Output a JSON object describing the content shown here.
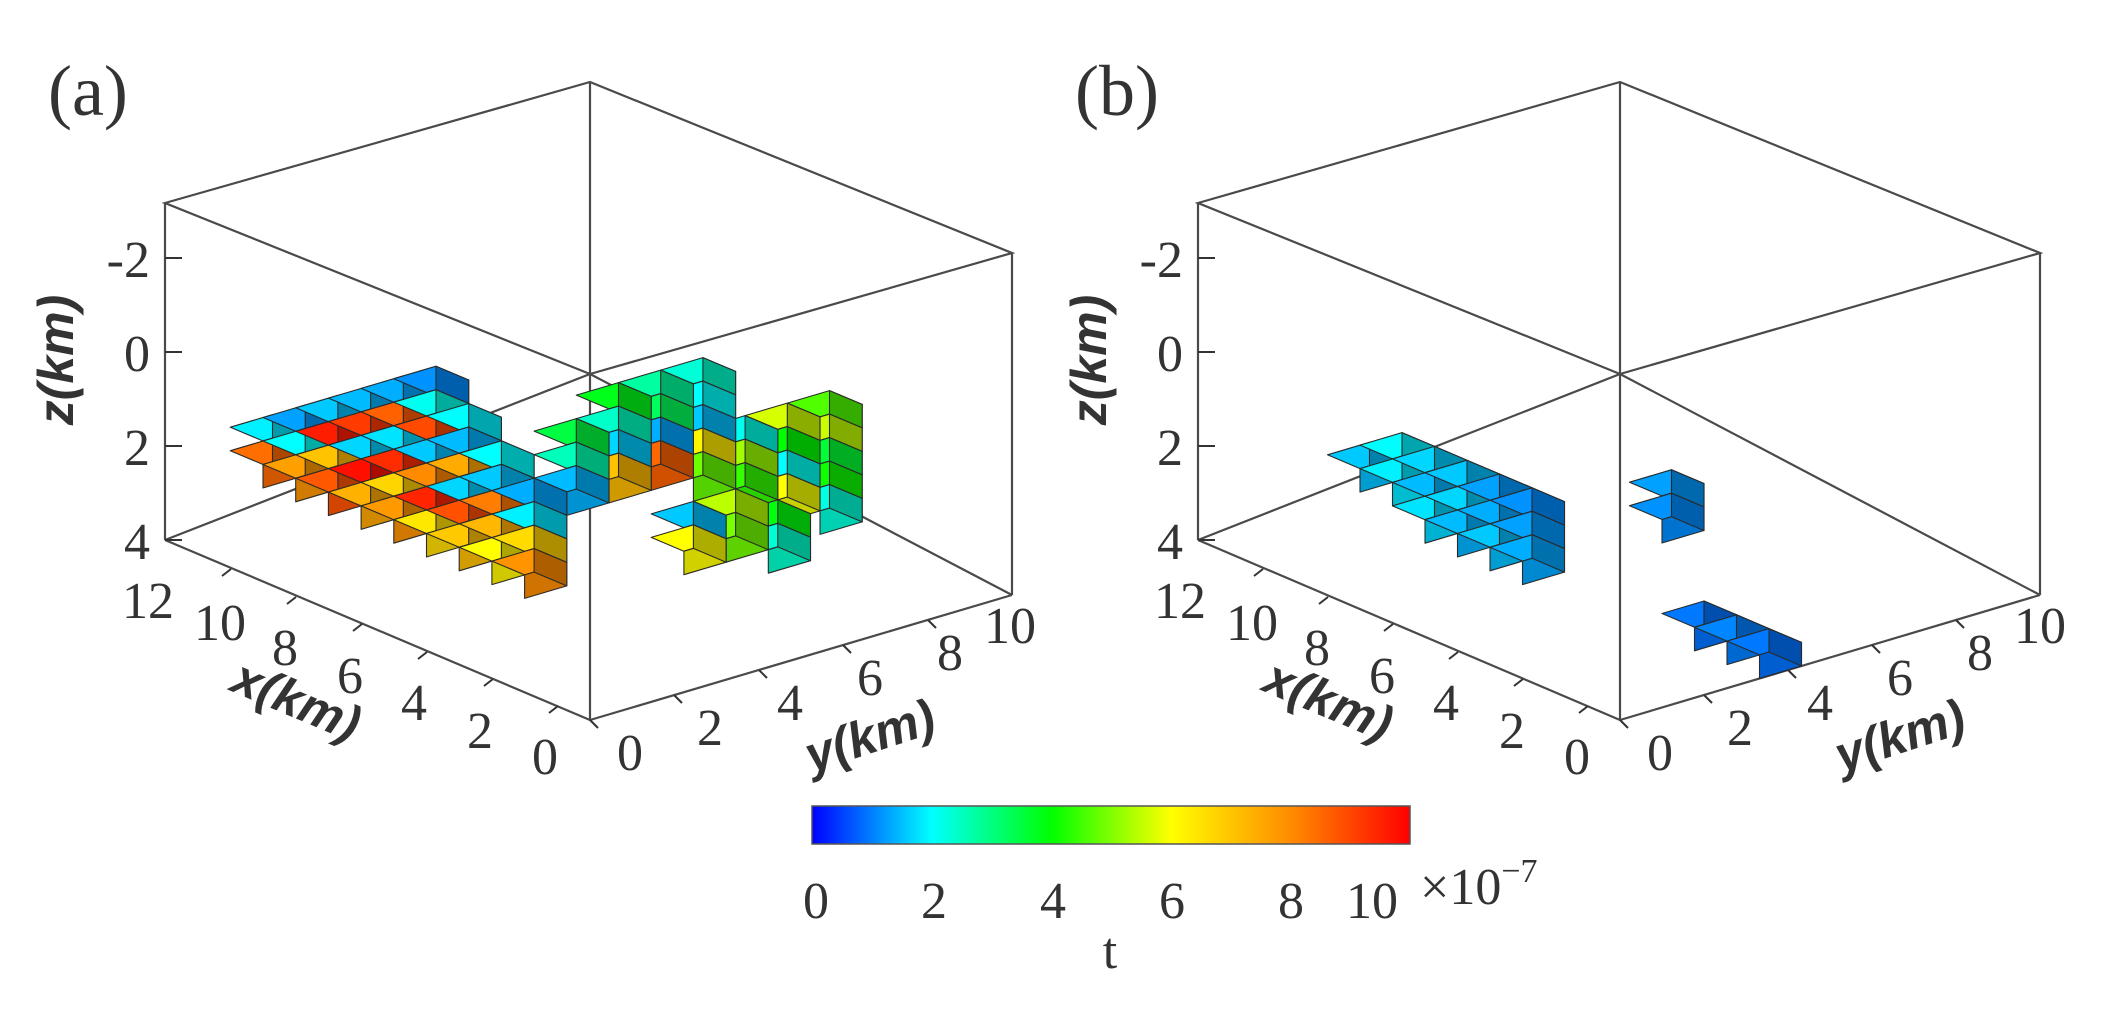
{
  "chart_data": [
    {
      "type": "scatter",
      "subtype": "3d-voxel",
      "panel_label": "(a)",
      "xlabel": "x(km)",
      "ylabel": "y(km)",
      "zlabel": "z(km)",
      "x_ticks": [
        "12",
        "10",
        "8",
        "6",
        "4",
        "2",
        "0"
      ],
      "y_ticks": [
        "0",
        "2",
        "4",
        "6",
        "8",
        "10"
      ],
      "z_ticks": [
        "-2",
        "0",
        "2",
        "4"
      ],
      "xlim": [
        0,
        13
      ],
      "ylim": [
        0,
        10
      ],
      "zlim": [
        -3,
        4
      ],
      "z_reversed": true,
      "voxels": [
        {
          "x": 10,
          "y": 0,
          "z": 1.5,
          "t": 1.8
        },
        {
          "x": 10,
          "y": 0,
          "z": 2.0,
          "t": 8.5
        },
        {
          "x": 9,
          "y": 0,
          "z": 1.0,
          "t": 1.2
        },
        {
          "x": 9,
          "y": 0,
          "z": 1.5,
          "t": 2.1
        },
        {
          "x": 9,
          "y": 0,
          "z": 2.0,
          "t": 7.8
        },
        {
          "x": 8,
          "y": 0,
          "z": 0.5,
          "t": 1.5
        },
        {
          "x": 8,
          "y": 0,
          "z": 1.0,
          "t": 9.6
        },
        {
          "x": 8,
          "y": 0,
          "z": 1.5,
          "t": 7.2
        },
        {
          "x": 8,
          "y": 0,
          "z": 2.0,
          "t": 8.8
        },
        {
          "x": 7,
          "y": 0,
          "z": 0.0,
          "t": 1.4
        },
        {
          "x": 7,
          "y": 0,
          "z": 0.5,
          "t": 9.2
        },
        {
          "x": 7,
          "y": 0,
          "z": 1.0,
          "t": 1.6
        },
        {
          "x": 7,
          "y": 0,
          "z": 1.5,
          "t": 9.8
        },
        {
          "x": 7,
          "y": 0,
          "z": 2.0,
          "t": 7.5
        },
        {
          "x": 6,
          "y": 0,
          "z": -0.5,
          "t": 1.3
        },
        {
          "x": 6,
          "y": 0,
          "z": 0.0,
          "t": 8.7
        },
        {
          "x": 6,
          "y": 0,
          "z": 0.5,
          "t": 1.7
        },
        {
          "x": 6,
          "y": 0,
          "z": 1.0,
          "t": 9.4
        },
        {
          "x": 6,
          "y": 0,
          "z": 1.5,
          "t": 6.9
        },
        {
          "x": 6,
          "y": 0,
          "z": 2.0,
          "t": 7.9
        },
        {
          "x": 5,
          "y": 0,
          "z": -1.0,
          "t": 1.1
        },
        {
          "x": 5,
          "y": 0,
          "z": -0.5,
          "t": 2.2
        },
        {
          "x": 5,
          "y": 0,
          "z": 0.0,
          "t": 9.0
        },
        {
          "x": 5,
          "y": 0,
          "z": 0.5,
          "t": 1.5
        },
        {
          "x": 5,
          "y": 0,
          "z": 1.0,
          "t": 8.1
        },
        {
          "x": 5,
          "y": 0,
          "z": 1.5,
          "t": 9.5
        },
        {
          "x": 5,
          "y": 0,
          "z": 2.0,
          "t": 6.6
        },
        {
          "x": 4,
          "y": 0,
          "z": -0.5,
          "t": 1.9
        },
        {
          "x": 4,
          "y": 0,
          "z": 0.0,
          "t": 1.4
        },
        {
          "x": 4,
          "y": 0,
          "z": 0.5,
          "t": 7.6
        },
        {
          "x": 4,
          "y": 0,
          "z": 1.0,
          "t": 1.6
        },
        {
          "x": 4,
          "y": 0,
          "z": 1.5,
          "t": 8.9
        },
        {
          "x": 4,
          "y": 0,
          "z": 2.0,
          "t": 7.1
        },
        {
          "x": 3,
          "y": 0,
          "z": 0.0,
          "t": 2.0
        },
        {
          "x": 3,
          "y": 0,
          "z": 0.5,
          "t": 1.5
        },
        {
          "x": 3,
          "y": 0,
          "z": 1.0,
          "t": 8.3
        },
        {
          "x": 3,
          "y": 0,
          "z": 1.5,
          "t": 7.4
        },
        {
          "x": 3,
          "y": 0,
          "z": 2.0,
          "t": 6.2
        },
        {
          "x": 2,
          "y": 0,
          "z": 0.5,
          "t": 1.3
        },
        {
          "x": 2,
          "y": 0,
          "z": 1.0,
          "t": 1.8
        },
        {
          "x": 2,
          "y": 0,
          "z": 1.5,
          "t": 6.8
        },
        {
          "x": 2,
          "y": 0,
          "z": 2.0,
          "t": 8.0
        },
        {
          "x": 2,
          "y": 1,
          "z": -0.5,
          "t": 3.5
        },
        {
          "x": 2,
          "y": 1,
          "z": 0.0,
          "t": 2.6
        },
        {
          "x": 2,
          "y": 1,
          "z": 0.5,
          "t": 1.4
        },
        {
          "x": 2,
          "y": 2,
          "z": -1.0,
          "t": 3.8
        },
        {
          "x": 2,
          "y": 2,
          "z": -0.5,
          "t": 2.5
        },
        {
          "x": 2,
          "y": 2,
          "z": 0.0,
          "t": 1.6
        },
        {
          "x": 2,
          "y": 2,
          "z": 0.5,
          "t": 7.2
        },
        {
          "x": 2,
          "y": 3,
          "z": -1.0,
          "t": 2.8
        },
        {
          "x": 2,
          "y": 3,
          "z": -0.5,
          "t": 3.3
        },
        {
          "x": 2,
          "y": 3,
          "z": 0.0,
          "t": 1.3
        },
        {
          "x": 2,
          "y": 3,
          "z": 0.5,
          "t": 8.6
        },
        {
          "x": 2,
          "y": 4,
          "z": -1.0,
          "t": 2.4
        },
        {
          "x": 2,
          "y": 4,
          "z": -0.5,
          "t": 2.0
        },
        {
          "x": 2,
          "y": 4,
          "z": 0.0,
          "t": 1.5
        },
        {
          "x": 2,
          "y": 4,
          "z": 0.5,
          "t": 6.4
        },
        {
          "x": 2,
          "y": 4,
          "z": 1.0,
          "t": 4.8
        },
        {
          "x": 2,
          "y": 5,
          "z": 0.5,
          "t": 2.2
        },
        {
          "x": 2,
          "y": 5,
          "z": 1.0,
          "t": 5.2
        },
        {
          "x": 2,
          "y": 5,
          "z": 1.5,
          "t": 4.4
        },
        {
          "x": 2,
          "y": 6,
          "z": 0.5,
          "t": 5.6
        },
        {
          "x": 2,
          "y": 6,
          "z": 1.0,
          "t": 4.0
        },
        {
          "x": 2,
          "y": 6,
          "z": 1.5,
          "t": 2.1
        },
        {
          "x": 2,
          "y": 6,
          "z": 2.0,
          "t": 5.9
        },
        {
          "x": 2,
          "y": 7,
          "z": 0.5,
          "t": 4.6
        },
        {
          "x": 2,
          "y": 7,
          "z": 1.0,
          "t": 5.5
        },
        {
          "x": 2,
          "y": 7,
          "z": 1.5,
          "t": 3.6
        },
        {
          "x": 2,
          "y": 7,
          "z": 2.0,
          "t": 4.1
        },
        {
          "x": 2,
          "y": 7,
          "z": 2.5,
          "t": 2.3
        },
        {
          "x": 1,
          "y": 3,
          "z": 1.5,
          "t": 1.5
        },
        {
          "x": 1,
          "y": 3,
          "z": 2.0,
          "t": 6.0
        },
        {
          "x": 1,
          "y": 4,
          "z": 1.5,
          "t": 5.4
        },
        {
          "x": 1,
          "y": 4,
          "z": 2.0,
          "t": 4.9
        },
        {
          "x": 1,
          "y": 5,
          "z": 2.0,
          "t": 3.9
        },
        {
          "x": 1,
          "y": 5,
          "z": 2.5,
          "t": 2.4
        }
      ]
    },
    {
      "type": "scatter",
      "subtype": "3d-voxel",
      "panel_label": "(b)",
      "xlabel": "x(km)",
      "ylabel": "y(km)",
      "zlabel": "z(km)",
      "x_ticks": [
        "12",
        "10",
        "8",
        "6",
        "4",
        "2",
        "0"
      ],
      "y_ticks": [
        "0",
        "2",
        "4",
        "6",
        "8",
        "10"
      ],
      "z_ticks": [
        "-2",
        "0",
        "2",
        "4"
      ],
      "xlim": [
        0,
        13
      ],
      "ylim": [
        0,
        10
      ],
      "zlim": [
        -3,
        4
      ],
      "z_reversed": true,
      "voxels": [
        {
          "x": 8,
          "y": 0,
          "z": 1.5,
          "t": 1.5
        },
        {
          "x": 7,
          "y": 0,
          "z": 1.0,
          "t": 1.9
        },
        {
          "x": 7,
          "y": 0,
          "z": 1.5,
          "t": 1.8
        },
        {
          "x": 6,
          "y": 0,
          "z": 1.0,
          "t": 1.6
        },
        {
          "x": 6,
          "y": 0,
          "z": 1.5,
          "t": 1.4
        },
        {
          "x": 6,
          "y": 0,
          "z": 2.0,
          "t": 1.7
        },
        {
          "x": 5,
          "y": 0,
          "z": 1.0,
          "t": 1.5
        },
        {
          "x": 5,
          "y": 0,
          "z": 1.5,
          "t": 1.6
        },
        {
          "x": 5,
          "y": 0,
          "z": 2.0,
          "t": 1.4
        },
        {
          "x": 4,
          "y": 0,
          "z": 1.0,
          "t": 1.2
        },
        {
          "x": 4,
          "y": 0,
          "z": 1.5,
          "t": 1.3
        },
        {
          "x": 4,
          "y": 0,
          "z": 2.0,
          "t": 1.5
        },
        {
          "x": 3,
          "y": 0,
          "z": 1.0,
          "t": 1.1
        },
        {
          "x": 3,
          "y": 0,
          "z": 1.5,
          "t": 1.2
        },
        {
          "x": 3,
          "y": 0,
          "z": 2.0,
          "t": 1.3
        },
        {
          "x": 0,
          "y": 1,
          "z": 0.0,
          "t": 1.2
        },
        {
          "x": 0,
          "y": 1,
          "z": 0.5,
          "t": 1.1
        },
        {
          "x": -1,
          "y": 1,
          "z": 2.5,
          "t": 0.9
        },
        {
          "x": -2,
          "y": 1,
          "z": 2.5,
          "t": 1.0
        },
        {
          "x": -3,
          "y": 1,
          "z": 2.5,
          "t": 0.9
        }
      ]
    }
  ],
  "colorbar": {
    "label": "t",
    "ticks": [
      "0",
      "2",
      "4",
      "6",
      "8",
      "10"
    ],
    "range": [
      0,
      10
    ],
    "multiplier": "×10",
    "exponent": "−7",
    "colors": [
      "#0000ff",
      "#00ffff",
      "#00ff00",
      "#ffff00",
      "#ff8c00",
      "#ff0000"
    ]
  }
}
